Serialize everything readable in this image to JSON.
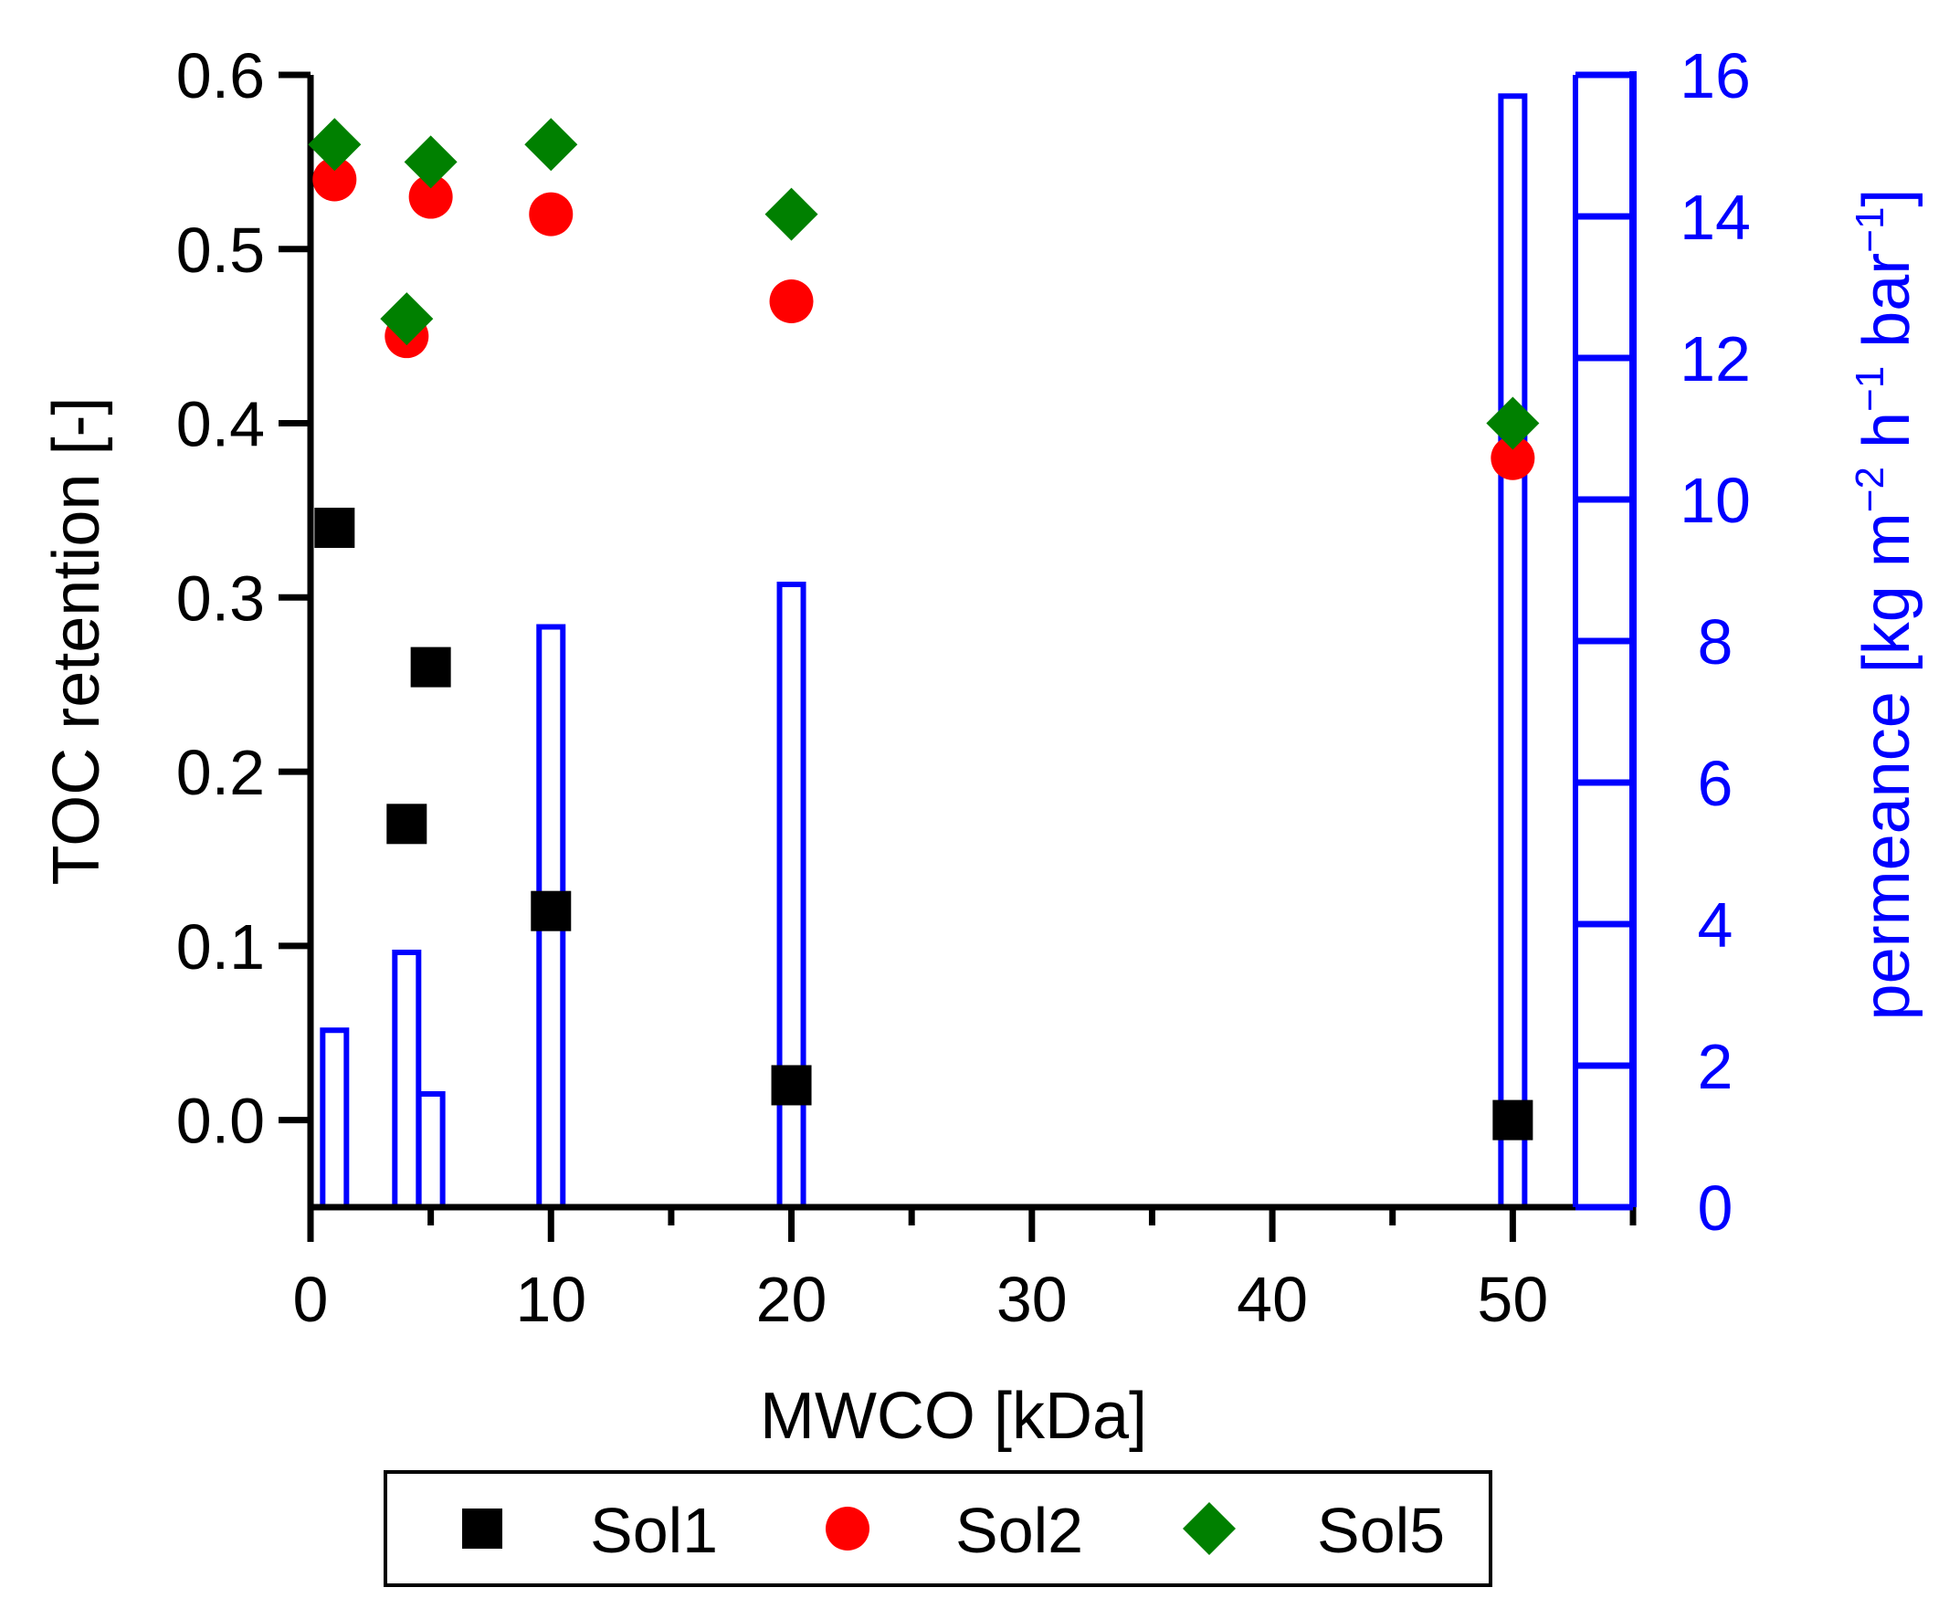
{
  "chart_data": {
    "type": "scatter",
    "x_axis": {
      "label": "MWCO [kDa]",
      "range": [
        0,
        55
      ],
      "ticks": [
        0,
        10,
        20,
        30,
        40,
        50
      ],
      "tick_labels": [
        "0",
        "10",
        "20",
        "30",
        "40",
        "50"
      ],
      "minor_ticks": [
        5,
        15,
        25,
        35,
        45,
        55
      ]
    },
    "y_axis_left": {
      "label": "TOC retention [-]",
      "range": [
        -0.05,
        0.6
      ],
      "ticks": [
        0.0,
        0.1,
        0.2,
        0.3,
        0.4,
        0.5,
        0.6
      ],
      "tick_labels": [
        "0.0",
        "0.1",
        "0.2",
        "0.3",
        "0.4",
        "0.5",
        "0.6"
      ],
      "color": "#000000"
    },
    "y_axis_right": {
      "label_main": "permeance [kg m",
      "label_sup1": "−2",
      "label_mid": " h",
      "label_sup2": "−1",
      "label_mid2": " bar",
      "label_sup3": "−1",
      "label_end": "]",
      "range": [
        0,
        16
      ],
      "ticks": [
        0,
        2,
        4,
        6,
        8,
        10,
        12,
        14,
        16
      ],
      "tick_labels": [
        "0",
        "2",
        "4",
        "6",
        "8",
        "10",
        "12",
        "14",
        "16"
      ],
      "color": "#0000ff"
    },
    "series": [
      {
        "name": "Sol1",
        "marker": "square",
        "color": "#000000",
        "points": [
          {
            "x": 1,
            "y": 0.34
          },
          {
            "x": 4,
            "y": 0.17
          },
          {
            "x": 5,
            "y": 0.26
          },
          {
            "x": 10,
            "y": 0.12
          },
          {
            "x": 20,
            "y": 0.02
          },
          {
            "x": 50,
            "y": 0.0
          }
        ]
      },
      {
        "name": "Sol2",
        "marker": "circle",
        "color": "#ff0000",
        "points": [
          {
            "x": 1,
            "y": 0.54
          },
          {
            "x": 4,
            "y": 0.45
          },
          {
            "x": 5,
            "y": 0.53
          },
          {
            "x": 10,
            "y": 0.52
          },
          {
            "x": 20,
            "y": 0.47
          },
          {
            "x": 50,
            "y": 0.38
          }
        ]
      },
      {
        "name": "Sol5",
        "marker": "diamond",
        "color": "#008000",
        "points": [
          {
            "x": 1,
            "y": 0.56
          },
          {
            "x": 4,
            "y": 0.46
          },
          {
            "x": 5,
            "y": 0.55
          },
          {
            "x": 10,
            "y": 0.56
          },
          {
            "x": 20,
            "y": 0.52
          },
          {
            "x": 50,
            "y": 0.4
          }
        ]
      }
    ],
    "bars": {
      "name": "permeance",
      "axis": "right",
      "color": "#0000ff",
      "points": [
        {
          "x": 1,
          "value": 2.5
        },
        {
          "x": 4,
          "value": 3.6
        },
        {
          "x": 5,
          "value": 1.6
        },
        {
          "x": 10,
          "value": 8.2
        },
        {
          "x": 20,
          "value": 8.8
        },
        {
          "x": 50,
          "value": 15.7
        }
      ]
    },
    "legend": {
      "position": "bottom",
      "entries": [
        "Sol1",
        "Sol2",
        "Sol5"
      ]
    }
  }
}
